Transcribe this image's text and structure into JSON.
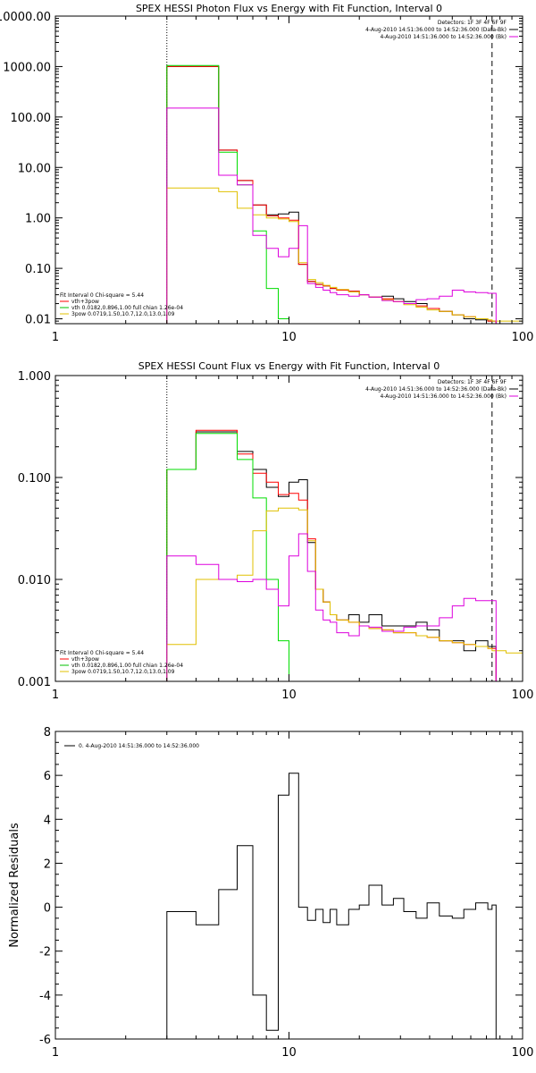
{
  "chart_data": [
    {
      "type": "line",
      "title": "SPEX HESSI Photon Flux vs Energy with Fit Function, Interval 0",
      "xscale": "log",
      "yscale": "log",
      "xlim": [
        1,
        100
      ],
      "ylim": [
        0.008,
        10000
      ],
      "xticks": [
        1,
        10,
        100
      ],
      "xtick_labels": [
        "1",
        "10",
        "100"
      ],
      "yticks": [
        0.01,
        0.1,
        1,
        10,
        100,
        1000,
        10000
      ],
      "ytick_labels": [
        "0.01",
        "0.10",
        "1.00",
        "10.00",
        "100.00",
        "1000.00",
        "10000.00"
      ],
      "grid": false,
      "vlines": [
        {
          "x": 3,
          "style": "dotted"
        },
        {
          "x": 74,
          "style": "dashed"
        }
      ],
      "legend_top": [
        "Detectors: 1F 3F 4F 6F 9F",
        "4-Aug-2010 14:51:36.000 to 14:52:36.000 (Data-Bk)",
        "4-Aug-2010 14:51:36.000 to 14:52:36.000 (Bk)"
      ],
      "legend_bottom": [
        {
          "label": "Fit Interval 0   Chi-square = 5.44",
          "color": ""
        },
        {
          "label": "vth+3pow",
          "color": "#ff0000"
        },
        {
          "label": "vth 0.0182,0.896,1.00  full chian 1.26e-04",
          "color": "#00c000"
        },
        {
          "label": "3pow 0.0719,1.50,10.7,12.0,13.0,1.09",
          "color": "#e0c000"
        }
      ],
      "colors": {
        "data": "#000000",
        "total": "#ff0000",
        "vth": "#00dd00",
        "pow": "#e0c000",
        "bk": "#dd00dd",
        "legend_bk": "#dd00dd"
      },
      "series": [
        {
          "name": "Data-Bk",
          "color": "#000000",
          "x": [
            3,
            4,
            5,
            6,
            7,
            8,
            9,
            10,
            11,
            12,
            13,
            14,
            15,
            16,
            18,
            20,
            22,
            25,
            28,
            31,
            35,
            39,
            44,
            50,
            56,
            63,
            71,
            74
          ],
          "y": [
            1000,
            1000,
            22,
            5.5,
            1.8,
            1.15,
            1.2,
            1.3,
            0.12,
            0.055,
            0.048,
            0.045,
            0.04,
            0.037,
            0.035,
            0.03,
            0.027,
            0.028,
            0.025,
            0.022,
            0.02,
            0.016,
            0.014,
            0.012,
            0.01,
            0.0095,
            0.009,
            0.009
          ]
        },
        {
          "name": "vth+3pow",
          "color": "#ff0000",
          "x": [
            3,
            4,
            5,
            6,
            7,
            8,
            9,
            10,
            11,
            12,
            13,
            14,
            15,
            16,
            18,
            20,
            22,
            25,
            28,
            31,
            35,
            39,
            44,
            50,
            56,
            63,
            71,
            74
          ],
          "y": [
            1000,
            1000,
            22,
            5.5,
            1.8,
            1.1,
            1,
            0.9,
            0.12,
            0.055,
            0.048,
            0.045,
            0.04,
            0.037,
            0.035,
            0.03,
            0.027,
            0.025,
            0.022,
            0.02,
            0.018,
            0.016,
            0.014,
            0.012,
            0.011,
            0.01,
            0.009,
            0.009
          ]
        },
        {
          "name": "vth",
          "color": "#00dd00",
          "x": [
            3,
            4,
            5,
            6,
            7,
            8,
            9,
            10
          ],
          "y": [
            1050,
            1050,
            20,
            4.5,
            0.55,
            0.04,
            0.01,
            0.008
          ]
        },
        {
          "name": "3pow",
          "color": "#e0c000",
          "x": [
            3,
            4,
            5,
            6,
            7,
            8,
            9,
            10,
            11,
            12,
            13,
            14,
            15,
            16,
            18,
            20,
            22,
            25,
            28,
            31,
            35,
            39,
            44,
            50,
            56,
            63,
            71,
            74,
            100
          ],
          "y": [
            3.9,
            3.9,
            3.3,
            1.55,
            1.15,
            1.0,
            0.95,
            0.85,
            0.13,
            0.06,
            0.052,
            0.046,
            0.042,
            0.038,
            0.034,
            0.03,
            0.027,
            0.024,
            0.022,
            0.019,
            0.017,
            0.015,
            0.014,
            0.012,
            0.011,
            0.01,
            0.0095,
            0.009,
            0.008
          ]
        },
        {
          "name": "Bk",
          "color": "#dd00dd",
          "x": [
            3,
            4,
            5,
            6,
            7,
            8,
            9,
            10,
            11,
            12,
            13,
            14,
            15,
            16,
            18,
            20,
            22,
            25,
            28,
            31,
            35,
            39,
            44,
            50,
            56,
            63,
            71,
            74
          ],
          "y": [
            150,
            150,
            7,
            4.5,
            0.45,
            0.25,
            0.17,
            0.25,
            0.7,
            0.05,
            0.042,
            0.037,
            0.033,
            0.03,
            0.028,
            0.03,
            0.027,
            0.023,
            0.022,
            0.02,
            0.024,
            0.025,
            0.028,
            0.037,
            0.034,
            0.033,
            0.032,
            0.032
          ]
        }
      ]
    },
    {
      "type": "line",
      "title": "SPEX HESSI Count Flux vs Energy with Fit Function, Interval 0",
      "xscale": "log",
      "yscale": "log",
      "xlim": [
        1,
        100
      ],
      "ylim": [
        0.001,
        1
      ],
      "xticks": [
        1,
        10,
        100
      ],
      "xtick_labels": [
        "1",
        "10",
        "100"
      ],
      "yticks": [
        0.001,
        0.01,
        0.1,
        1
      ],
      "ytick_labels": [
        "0.001",
        "0.010",
        "0.100",
        "1.000"
      ],
      "grid": false,
      "vlines": [
        {
          "x": 3,
          "style": "dotted"
        },
        {
          "x": 74,
          "style": "dashed"
        }
      ],
      "legend_top": [
        "Detectors: 1F 3F 4F 6F 9F",
        "4-Aug-2010 14:51:36.000 to 14:52:36.000 (Data-Bk)",
        "4-Aug-2010 14:51:36.000 to 14:52:36.000 (Bk)"
      ],
      "legend_bottom": [
        {
          "label": "Fit Interval 0   Chi-square = 5.44",
          "color": ""
        },
        {
          "label": "vth+3pow",
          "color": "#ff0000"
        },
        {
          "label": "vth 0.0182,0.896,1.00  full chian 1.26e-04",
          "color": "#00c000"
        },
        {
          "label": "3pow 0.0719,1.50,10.7,12.0,13.0,1.09",
          "color": "#e0c000"
        }
      ],
      "series": [
        {
          "name": "Data-Bk",
          "color": "#000000",
          "x": [
            3,
            4,
            5,
            6,
            7,
            8,
            9,
            10,
            11,
            12,
            13,
            14,
            15,
            16,
            18,
            20,
            22,
            25,
            28,
            31,
            35,
            39,
            44,
            50,
            56,
            63,
            71,
            74
          ],
          "y": [
            0.12,
            0.28,
            0.28,
            0.18,
            0.12,
            0.08,
            0.065,
            0.09,
            0.095,
            0.023,
            0.008,
            0.006,
            0.0045,
            0.004,
            0.0045,
            0.0038,
            0.0045,
            0.0035,
            0.0035,
            0.0035,
            0.0038,
            0.0032,
            0.0025,
            0.0025,
            0.002,
            0.0025,
            0.0022,
            0.0022
          ]
        },
        {
          "name": "vth+3pow",
          "color": "#ff0000",
          "x": [
            3,
            4,
            5,
            6,
            7,
            8,
            9,
            10,
            11,
            12,
            13,
            14,
            15,
            16,
            18,
            20,
            22,
            25,
            28,
            31,
            35,
            39,
            44,
            50,
            56,
            63,
            71,
            74
          ],
          "y": [
            0.12,
            0.29,
            0.29,
            0.17,
            0.11,
            0.09,
            0.068,
            0.07,
            0.06,
            0.025,
            0.008,
            0.006,
            0.0045,
            0.004,
            0.0038,
            0.0035,
            0.0033,
            0.0032,
            0.003,
            0.003,
            0.0028,
            0.0027,
            0.0025,
            0.0024,
            0.0023,
            0.0022,
            0.0021,
            0.0021
          ]
        },
        {
          "name": "vth",
          "color": "#00dd00",
          "x": [
            3,
            4,
            5,
            6,
            7,
            8,
            9,
            10
          ],
          "y": [
            0.12,
            0.27,
            0.27,
            0.15,
            0.063,
            0.01,
            0.0025,
            0.001
          ]
        },
        {
          "name": "3pow",
          "color": "#e0c000",
          "x": [
            3,
            4,
            5,
            6,
            7,
            8,
            9,
            10,
            11,
            12,
            13,
            14,
            15,
            16,
            18,
            20,
            22,
            25,
            28,
            31,
            35,
            39,
            44,
            50,
            56,
            63,
            71,
            74,
            85,
            100
          ],
          "y": [
            0.0023,
            0.01,
            0.01,
            0.011,
            0.03,
            0.047,
            0.05,
            0.05,
            0.048,
            0.024,
            0.008,
            0.006,
            0.0045,
            0.004,
            0.0038,
            0.0035,
            0.0033,
            0.0032,
            0.003,
            0.003,
            0.0028,
            0.0027,
            0.0025,
            0.0024,
            0.0023,
            0.0022,
            0.0021,
            0.002,
            0.0019,
            0.0018
          ]
        },
        {
          "name": "Bk",
          "color": "#dd00dd",
          "x": [
            3,
            4,
            5,
            6,
            7,
            8,
            9,
            10,
            11,
            12,
            13,
            14,
            15,
            16,
            18,
            20,
            22,
            25,
            28,
            31,
            35,
            39,
            44,
            50,
            56,
            63,
            71,
            74
          ],
          "y": [
            0.017,
            0.014,
            0.01,
            0.0095,
            0.01,
            0.008,
            0.0055,
            0.017,
            0.028,
            0.012,
            0.005,
            0.004,
            0.0038,
            0.003,
            0.0028,
            0.0035,
            0.0034,
            0.0031,
            0.0031,
            0.0034,
            0.0035,
            0.0035,
            0.0042,
            0.0055,
            0.0065,
            0.0062,
            0.0062,
            0.0062
          ]
        }
      ]
    },
    {
      "type": "line",
      "title": "",
      "xscale": "log",
      "yscale": "linear",
      "xlim": [
        1,
        100
      ],
      "ylim": [
        -6,
        8
      ],
      "xticks": [
        1,
        10,
        100
      ],
      "xtick_labels": [
        "1",
        "10",
        "100"
      ],
      "yticks": [
        -6,
        -4,
        -2,
        0,
        2,
        4,
        6,
        8
      ],
      "ytick_labels": [
        "-6",
        "-4",
        "-2",
        "0",
        "2",
        "4",
        "6",
        "8"
      ],
      "ylabel": "Normalized Residuals",
      "grid": false,
      "legend": [
        {
          "label": "0.  4-Aug-2010 14:51:36.000 to 14:52:36.000",
          "color": "#000000"
        }
      ],
      "series": [
        {
          "name": "0.  4-Aug-2010 14:51:36.000 to 14:52:36.000",
          "color": "#000000",
          "x": [
            3,
            4,
            5,
            6,
            7,
            8,
            9,
            10,
            11,
            12,
            13,
            14,
            15,
            16,
            18,
            20,
            22,
            25,
            28,
            31,
            35,
            39,
            44,
            50,
            56,
            63,
            71,
            74
          ],
          "y": [
            -0.2,
            -0.8,
            0.8,
            2.8,
            -4.0,
            -5.6,
            5.1,
            6.1,
            0.0,
            -0.6,
            -0.1,
            -0.7,
            -0.1,
            -0.8,
            -0.1,
            0.1,
            1.0,
            0.1,
            0.4,
            -0.2,
            -0.5,
            0.2,
            -0.4,
            -0.5,
            -0.1,
            0.2,
            -0.1,
            0.1
          ]
        }
      ]
    }
  ]
}
